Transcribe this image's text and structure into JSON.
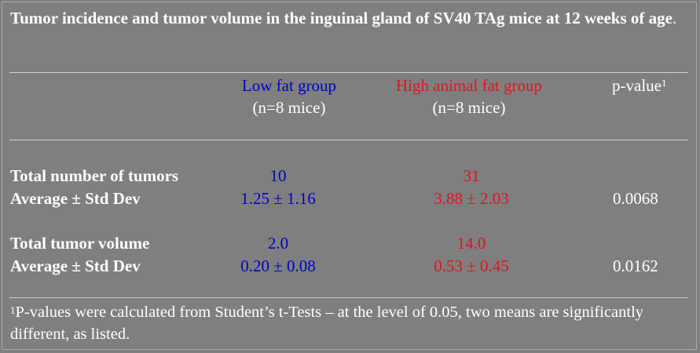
{
  "title": {
    "bold_text": "Tumor incidence and tumor volume in the inguinal gland of SV40 TAg mice at 12 weeks of age",
    "tail": "."
  },
  "header": {
    "low_fat": {
      "name": "Low fat group",
      "n": "(n=8 mice)"
    },
    "high_fat": {
      "name": "High animal fat group",
      "n": "(n=8 mice)"
    },
    "pvalue": {
      "label": "p-value",
      "sup": "1"
    }
  },
  "rows": [
    {
      "label": "Total number of tumors",
      "low": "10",
      "high": "31",
      "p": ""
    },
    {
      "label": "Average ± Std Dev",
      "low": "1.25 ± 1.16",
      "high": "3.88 ± 2.03",
      "p": "0.0068"
    },
    {
      "label": "Total tumor volume",
      "low": "2.0",
      "high": "14.0",
      "p": ""
    },
    {
      "label": "Average ± Std Dev",
      "low": "0.20 ± 0.08",
      "high": "0.53 ± 0.45",
      "p": "0.0162"
    }
  ],
  "footnote": {
    "sup": "1",
    "text": "P-values were calculated from Student’s t-Tests – at the level of 0.05, two means are significantly  different, as listed."
  },
  "colors": {
    "background": "#7f7f7f",
    "low_fat": "#0000cc",
    "high_fat": "#e0141e",
    "text": "#ffffff"
  }
}
